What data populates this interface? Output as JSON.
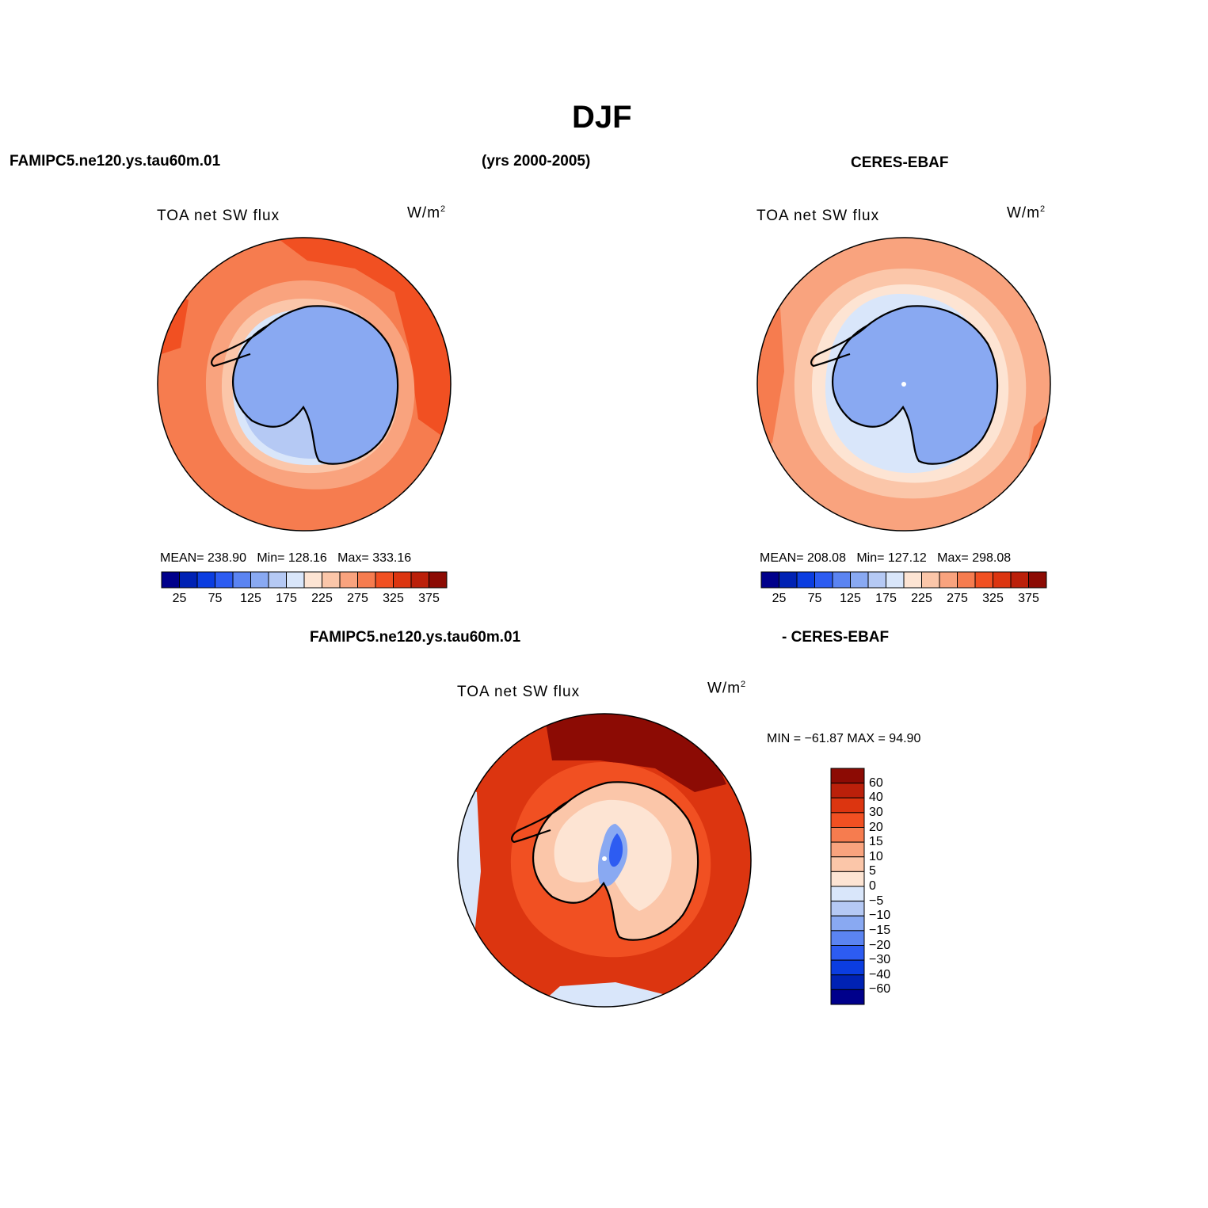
{
  "title": "DJF",
  "header": {
    "left": "FAMIPC5.ne120.ys.tau60m.01",
    "center": "(yrs 2000-2005)",
    "right": "CERES-EBAF",
    "diff_left": "FAMIPC5.ne120.ys.tau60m.01",
    "diff_right": "- CERES-EBAF"
  },
  "panels": [
    {
      "id": "model",
      "var": "TOA net SW flux",
      "units_base": "W/m",
      "units_exp": "2",
      "mean_label": "MEAN=",
      "mean": "238.90",
      "min_label": "Min=",
      "min": "128.16",
      "max_label": "Max=",
      "max": "333.16",
      "colorbar_ticks": [
        "25",
        "75",
        "125",
        "175",
        "225",
        "275",
        "325",
        "375"
      ]
    },
    {
      "id": "obs",
      "var": "TOA net SW flux",
      "units_base": "W/m",
      "units_exp": "2",
      "mean_label": "MEAN=",
      "mean": "208.08",
      "min_label": "Min=",
      "min": "127.12",
      "max_label": "Max=",
      "max": "298.08",
      "colorbar_ticks": [
        "25",
        "75",
        "125",
        "175",
        "225",
        "275",
        "325",
        "375"
      ]
    },
    {
      "id": "diff",
      "var": "TOA net SW flux",
      "units_base": "W/m",
      "units_exp": "2",
      "minmax_text": "MIN = −61.87 MAX =  94.90",
      "colorbar_ticks": [
        "60",
        "40",
        "30",
        "20",
        "15",
        "10",
        "5",
        "0",
        "−5",
        "−10",
        "−15",
        "−20",
        "−30",
        "−40",
        "−60"
      ]
    }
  ],
  "colors": {
    "abs_scale": [
      "#00008b",
      "#0022b4",
      "#0b3de0",
      "#2d5cf2",
      "#5b84f2",
      "#89a9f2",
      "#b5c9f4",
      "#d9e6fa",
      "#fde4d3",
      "#fbc6a9",
      "#f9a37e",
      "#f67c4f",
      "#f15022",
      "#dc3510",
      "#bb200a",
      "#8c0b04"
    ],
    "diff_scale": [
      "#8c0b04",
      "#bb200a",
      "#dc3510",
      "#f15022",
      "#f67c4f",
      "#f9a37e",
      "#fbc6a9",
      "#fde4d3",
      "#d9e6fa",
      "#b5c9f4",
      "#89a9f2",
      "#5b84f2",
      "#2d5cf2",
      "#0b3de0",
      "#0022b4",
      "#00008b"
    ]
  }
}
